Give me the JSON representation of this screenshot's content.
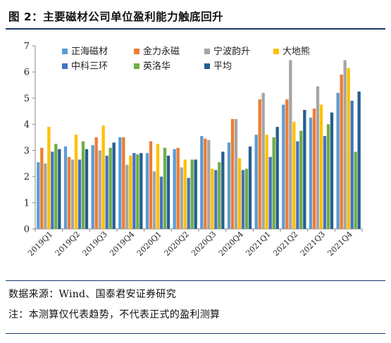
{
  "title": "图 2：主要磁材公司单位盈利能力触底回升",
  "source_text": "数据来源：Wind、国泰君安证券研究",
  "note_text": "注：本测算仅代表趋势，不代表正式的盈利测算",
  "chart_data": {
    "type": "bar",
    "categories": [
      "2019Q1",
      "2019Q2",
      "2019Q3",
      "2019Q4",
      "2020Q1",
      "2020Q2",
      "2020Q3",
      "2020Q4",
      "2021Q1",
      "2021Q2",
      "2021Q3",
      "2021Q4"
    ],
    "ylim": [
      0,
      7
    ],
    "yticks": [
      0,
      1,
      2,
      3,
      4,
      5,
      6,
      7
    ],
    "grid": false,
    "legend_position": "top-left",
    "series": [
      {
        "name": "正海磁材",
        "color": "#5b9bd5",
        "values": [
          2.55,
          3.15,
          3.2,
          3.5,
          2.9,
          3.05,
          3.55,
          3.3,
          3.6,
          4.75,
          4.25,
          5.2
        ]
      },
      {
        "name": "金力永磁",
        "color": "#ed7d31",
        "values": [
          3.1,
          2.75,
          3.5,
          3.5,
          3.35,
          3.1,
          3.45,
          4.2,
          4.95,
          4.95,
          4.6,
          5.9
        ]
      },
      {
        "name": "宁波韵升",
        "color": "#a5a5a5",
        "values": [
          2.5,
          2.65,
          3.0,
          2.45,
          2.2,
          2.35,
          3.4,
          4.2,
          5.2,
          6.45,
          5.45,
          6.45
        ]
      },
      {
        "name": "大地熊",
        "color": "#ffc000",
        "values": [
          3.9,
          3.6,
          3.95,
          2.8,
          3.25,
          2.65,
          2.3,
          2.7,
          3.6,
          4.1,
          4.75,
          6.15
        ]
      },
      {
        "name": "中科三环",
        "color": "#4472c4",
        "values": [
          2.95,
          2.65,
          2.8,
          2.9,
          2.0,
          1.95,
          2.25,
          2.25,
          2.75,
          3.35,
          3.55,
          4.9
        ]
      },
      {
        "name": "英洛华",
        "color": "#70ad47",
        "values": [
          3.25,
          3.35,
          3.1,
          2.85,
          3.1,
          2.65,
          2.55,
          2.3,
          3.5,
          3.75,
          4.0,
          2.95
        ]
      },
      {
        "name": "平均",
        "color": "#255e91",
        "values": [
          3.05,
          3.05,
          3.3,
          2.9,
          2.8,
          2.65,
          2.95,
          3.15,
          3.9,
          4.55,
          4.45,
          5.25
        ]
      }
    ]
  }
}
